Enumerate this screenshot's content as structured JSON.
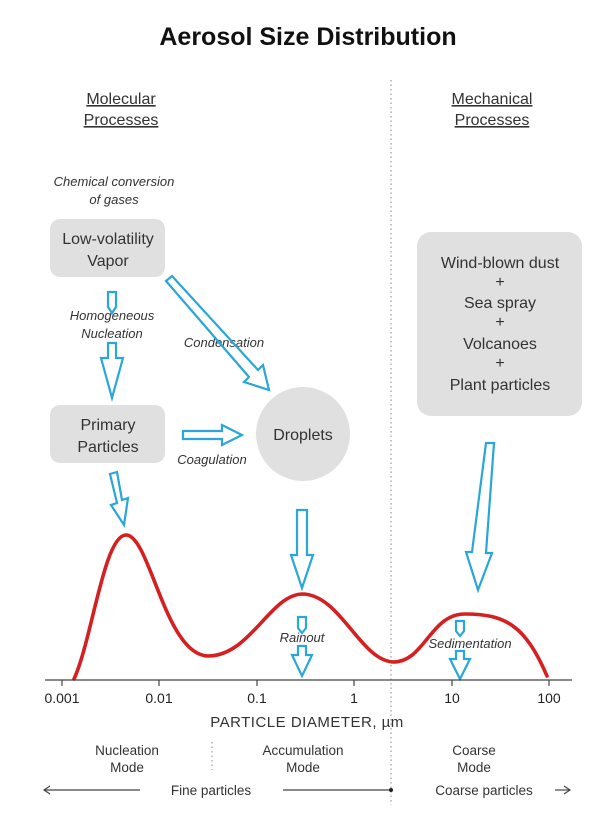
{
  "title": "Aerosol Size Distribution",
  "headings": {
    "left": [
      "Molecular",
      "Processes"
    ],
    "right": [
      "Mechanical",
      "Processes"
    ]
  },
  "labels": {
    "chemical_conversion": [
      "Chemical conversion",
      "of gases"
    ],
    "homogeneous_nucleation": [
      "Homogeneous",
      "Nucleation"
    ],
    "condensation": "Condensation",
    "coagulation": "Coagulation",
    "rainout": "Rainout",
    "sedimentation": "Sedimentation"
  },
  "boxes": {
    "vapor": [
      "Low-volatility",
      "Vapor"
    ],
    "primary": [
      "Primary",
      "Particles"
    ],
    "droplets": "Droplets",
    "mechanical": [
      "Wind-blown dust",
      "+",
      "Sea spray",
      "+",
      "Volcanoes",
      "+",
      "Plant particles"
    ]
  },
  "axis": {
    "ticks": [
      "0.001",
      "0.01",
      "0.1",
      "1",
      "10",
      "100"
    ],
    "xlabel": "PARTICLE DIAMETER, µm"
  },
  "modes": {
    "nucleation": [
      "Nucleation",
      "Mode"
    ],
    "accumulation": [
      "Accumulation",
      "Mode"
    ],
    "coarse": [
      "Coarse",
      "Mode"
    ]
  },
  "bottom": {
    "fine": "Fine particles",
    "coarse": "Coarse particles"
  },
  "colors": {
    "arrow": "#2aa6d8",
    "curve": "#d42020",
    "box": "#e0e0e0"
  }
}
